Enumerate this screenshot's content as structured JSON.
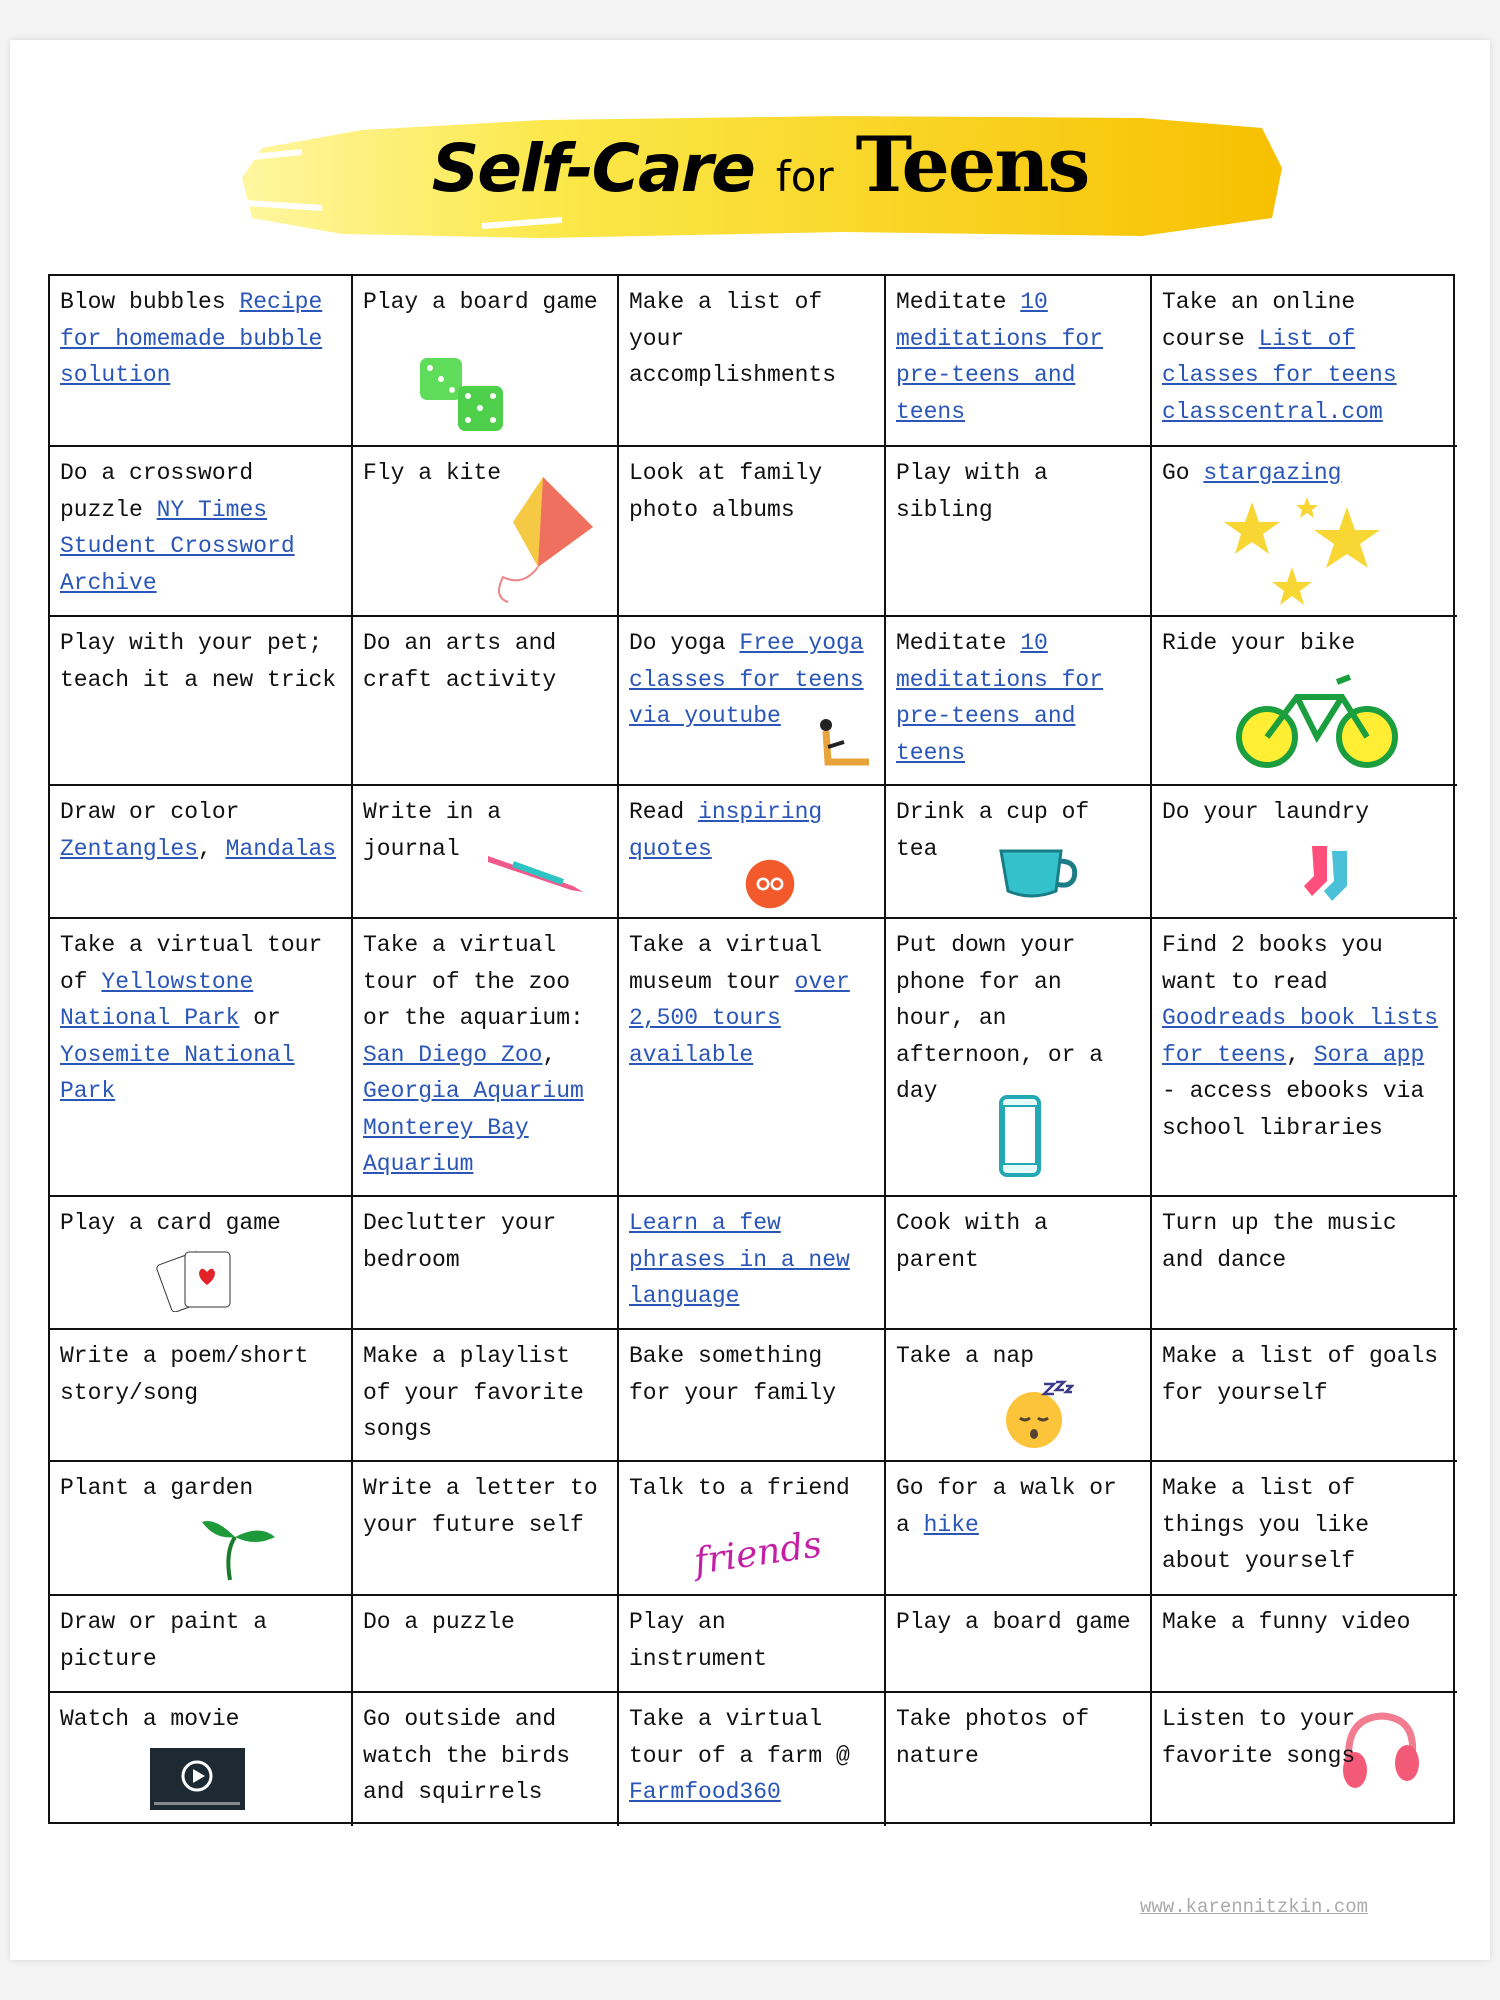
{
  "title": {
    "part1": "Self-Care",
    "part2": "for",
    "part3": "Teens"
  },
  "colors": {
    "link": "#2a56b8",
    "banner_light": "#fbe84a",
    "banner_dark": "#f7c200"
  },
  "footer": "www.karennitzkin.com",
  "rows": [
    [
      {
        "parts": [
          {
            "t": "Blow bubbles "
          },
          {
            "link": "Recipe for homemade bubble solution"
          }
        ]
      },
      {
        "parts": [
          {
            "t": "Play a board game"
          }
        ],
        "icon": "dice-icon"
      },
      {
        "parts": [
          {
            "t": "Make a list of your accomplishments"
          }
        ]
      },
      {
        "parts": [
          {
            "t": "Meditate "
          },
          {
            "link": "10 meditations for pre-teens and teens"
          }
        ]
      },
      {
        "parts": [
          {
            "t": "Take an online course "
          },
          {
            "link": "List of classes for teens classcentral.com"
          }
        ]
      }
    ],
    [
      {
        "parts": [
          {
            "t": "Do a crossword puzzle "
          },
          {
            "link": "NY Times Student Crossword Archive"
          }
        ]
      },
      {
        "parts": [
          {
            "t": "Fly a kite"
          }
        ],
        "icon": "kite-icon"
      },
      {
        "parts": [
          {
            "t": "Look at family photo albums"
          }
        ]
      },
      {
        "parts": [
          {
            "t": "Play with a sibling"
          }
        ]
      },
      {
        "parts": [
          {
            "t": "Go "
          },
          {
            "link": "stargazing"
          }
        ],
        "icon": "stars-icon"
      }
    ],
    [
      {
        "parts": [
          {
            "t": "Play with your pet; teach it a new trick"
          }
        ]
      },
      {
        "parts": [
          {
            "t": "Do an arts and craft activity"
          }
        ]
      },
      {
        "parts": [
          {
            "t": "Do yoga "
          },
          {
            "link": "Free yoga classes for teens via youtube"
          }
        ],
        "icon": "yoga-icon"
      },
      {
        "parts": [
          {
            "t": "Meditate "
          },
          {
            "link": "10 meditations for pre-teens and teens"
          }
        ]
      },
      {
        "parts": [
          {
            "t": "Ride your bike"
          }
        ],
        "icon": "bike-icon"
      }
    ],
    [
      {
        "parts": [
          {
            "t": "Draw or color "
          },
          {
            "link": "Zentangles"
          },
          {
            "t": ", "
          },
          {
            "link": "Mandalas"
          }
        ]
      },
      {
        "parts": [
          {
            "t": "Write in a journal"
          }
        ],
        "icon": "pen-icon"
      },
      {
        "parts": [
          {
            "t": "Read "
          },
          {
            "link": "inspiring quotes"
          }
        ],
        "icon": "quote-icon"
      },
      {
        "parts": [
          {
            "t": "Drink a cup of tea"
          }
        ],
        "icon": "cup-icon"
      },
      {
        "parts": [
          {
            "t": "Do your laundry"
          }
        ],
        "icon": "socks-icon"
      }
    ],
    [
      {
        "parts": [
          {
            "t": "Take a virtual tour of "
          },
          {
            "link": "Yellowstone National Park"
          },
          {
            "t": " or "
          },
          {
            "link": "Yosemite National Park"
          }
        ]
      },
      {
        "parts": [
          {
            "t": "Take a virtual tour of the zoo or the aquarium: "
          },
          {
            "link": "San Diego Zoo"
          },
          {
            "t": ", "
          },
          {
            "link": "Georgia Aquarium"
          },
          {
            "t": " "
          },
          {
            "link": "Monterey Bay Aquarium"
          }
        ]
      },
      {
        "parts": [
          {
            "t": "Take a virtual museum tour "
          },
          {
            "link": "over 2,500 tours available"
          }
        ]
      },
      {
        "parts": [
          {
            "t": "Put down your phone for an hour, an afternoon, or a day"
          }
        ],
        "icon": "phone-icon"
      },
      {
        "parts": [
          {
            "t": "Find 2 books you want to read "
          },
          {
            "link": "Goodreads book lists for teens"
          },
          {
            "t": ", "
          },
          {
            "link": "Sora app"
          },
          {
            "t": " - access ebooks via school libraries"
          }
        ]
      }
    ],
    [
      {
        "parts": [
          {
            "t": "Play a card game"
          }
        ],
        "icon": "cards-icon"
      },
      {
        "parts": [
          {
            "t": "Declutter your bedroom"
          }
        ]
      },
      {
        "parts": [
          {
            "link": "Learn a few phrases in a new language"
          }
        ]
      },
      {
        "parts": [
          {
            "t": "Cook with a parent"
          }
        ]
      },
      {
        "parts": [
          {
            "t": "Turn up the music and dance"
          }
        ]
      }
    ],
    [
      {
        "parts": [
          {
            "t": "Write a poem/short story/song"
          }
        ]
      },
      {
        "parts": [
          {
            "t": "Make a playlist of your favorite songs"
          }
        ]
      },
      {
        "parts": [
          {
            "t": "Bake something for your family"
          }
        ]
      },
      {
        "parts": [
          {
            "t": "Take a nap"
          }
        ],
        "icon": "sleeping-face-icon"
      },
      {
        "parts": [
          {
            "t": "Make a list of goals for yourself"
          }
        ]
      }
    ],
    [
      {
        "parts": [
          {
            "t": "Plant a garden"
          }
        ],
        "icon": "sprout-icon"
      },
      {
        "parts": [
          {
            "t": "Write a letter to your future self"
          }
        ]
      },
      {
        "parts": [
          {
            "t": "Talk to a friend"
          }
        ],
        "icon": "friends-lettering-icon",
        "icon_text": "friends"
      },
      {
        "parts": [
          {
            "t": "Go for a walk or a "
          },
          {
            "link": "hike"
          }
        ]
      },
      {
        "parts": [
          {
            "t": "Make a list of things you like about yourself"
          }
        ]
      }
    ],
    [
      {
        "parts": [
          {
            "t": "Draw or paint a picture"
          }
        ]
      },
      {
        "parts": [
          {
            "t": "Do a puzzle"
          }
        ]
      },
      {
        "parts": [
          {
            "t": "Play an instrument"
          }
        ]
      },
      {
        "parts": [
          {
            "t": "Play a board game"
          }
        ]
      },
      {
        "parts": [
          {
            "t": "Make a funny video"
          }
        ]
      }
    ],
    [
      {
        "parts": [
          {
            "t": "Watch a movie"
          }
        ],
        "icon": "video-player-icon"
      },
      {
        "parts": [
          {
            "t": "Go outside and watch the birds and squirrels"
          }
        ]
      },
      {
        "parts": [
          {
            "t": "Take a virtual tour of a farm @ "
          },
          {
            "link": "Farmfood360"
          }
        ]
      },
      {
        "parts": [
          {
            "t": "Take photos of nature"
          }
        ]
      },
      {
        "parts": [
          {
            "t": "Listen to  your favorite songs"
          }
        ],
        "icon": "headphones-icon"
      }
    ]
  ]
}
